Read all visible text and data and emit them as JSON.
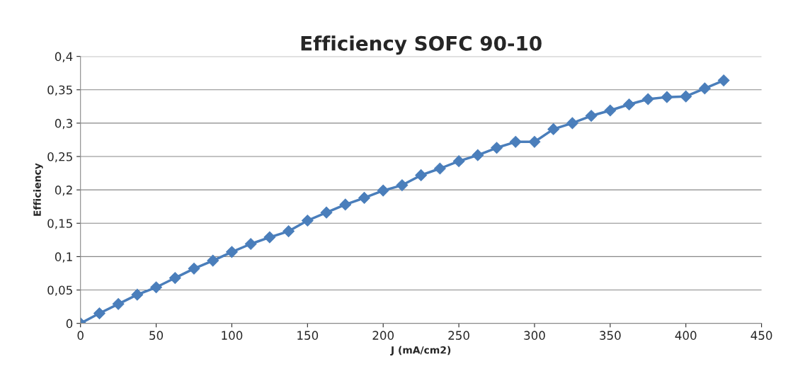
{
  "chart_data": {
    "type": "line",
    "title": "Efficiency SOFC 90-10",
    "xlabel": "J (mA/cm2)",
    "ylabel": "Efficiency",
    "x": [
      0,
      12.5,
      25,
      37.5,
      50,
      62.5,
      75,
      87.5,
      100,
      112.5,
      125,
      137.5,
      150,
      162.5,
      175,
      187.5,
      200,
      212.5,
      225,
      237.5,
      250,
      262.5,
      275,
      287.5,
      300,
      312.5,
      325,
      337.5,
      350,
      362.5,
      375,
      387.5,
      400,
      412.5,
      425
    ],
    "series": [
      {
        "color": "#4a7ebb",
        "values": [
          0,
          0.015,
          0.029,
          0.043,
          0.054,
          0.068,
          0.082,
          0.094,
          0.107,
          0.119,
          0.129,
          0.138,
          0.154,
          0.166,
          0.178,
          0.188,
          0.199,
          0.207,
          0.222,
          0.232,
          0.243,
          0.252,
          0.263,
          0.272,
          0.272,
          0.291,
          0.3,
          0.311,
          0.319,
          0.328,
          0.336,
          0.339,
          0.34,
          0.352,
          0.364
        ]
      }
    ],
    "xlim": [
      0,
      450
    ],
    "xticks": [
      0,
      50,
      100,
      150,
      200,
      250,
      300,
      350,
      400,
      450
    ],
    "ylim": [
      0,
      0.4
    ],
    "yticks": [
      0,
      {
        "value": 0.05,
        "label": "0,05"
      },
      {
        "value": 0.1,
        "label": "0,1"
      },
      {
        "value": 0.15,
        "label": "0,15"
      },
      {
        "value": 0.2,
        "label": "0,2"
      },
      {
        "value": 0.25,
        "label": "0,25"
      },
      {
        "value": 0.3,
        "label": "0,3"
      },
      {
        "value": 0.35,
        "label": "0,35"
      },
      {
        "value": 0.4,
        "label": "0,4"
      }
    ],
    "grid": "y",
    "marker": "diamond",
    "line_style": "solid"
  }
}
